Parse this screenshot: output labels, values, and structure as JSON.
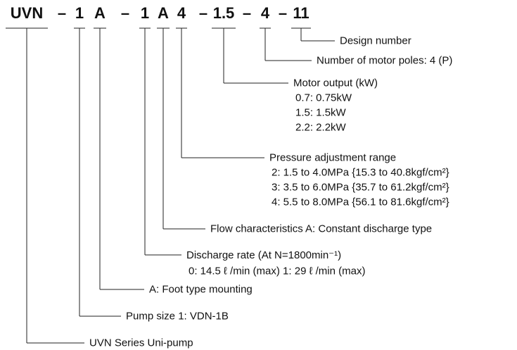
{
  "code": [
    "UVN",
    "–",
    "1",
    "A",
    "–",
    "1",
    "A",
    "4",
    "–",
    "1.5",
    "–",
    "4",
    "–",
    "11"
  ],
  "fields": [
    {
      "label": "UVN Series Uni-pump"
    },
    {
      "label": "Pump size   1: VDN-1B"
    },
    {
      "label": "A: Foot type mounting"
    },
    {
      "label": "Discharge rate (At N=1800min⁻¹)",
      "details": [
        "0: 14.5 ℓ /min (max)   1: 29 ℓ /min (max)"
      ]
    },
    {
      "label": "Flow characteristics   A: Constant discharge type"
    },
    {
      "label": "Pressure adjustment range",
      "details": [
        "2: 1.5 to 4.0MPa {15.3 to 40.8kgf/cm²}",
        "3: 3.5 to 6.0MPa {35.7 to 61.2kgf/cm²}",
        "4: 5.5 to 8.0MPa {56.1 to 81.6kgf/cm²}"
      ]
    },
    {
      "label": "Motor output (kW)",
      "details": [
        "0.7: 0.75kW",
        "1.5: 1.5kW",
        "2.2: 2.2kW"
      ]
    },
    {
      "label": "Number of motor poles: 4 (P)"
    },
    {
      "label": "Design number"
    }
  ]
}
